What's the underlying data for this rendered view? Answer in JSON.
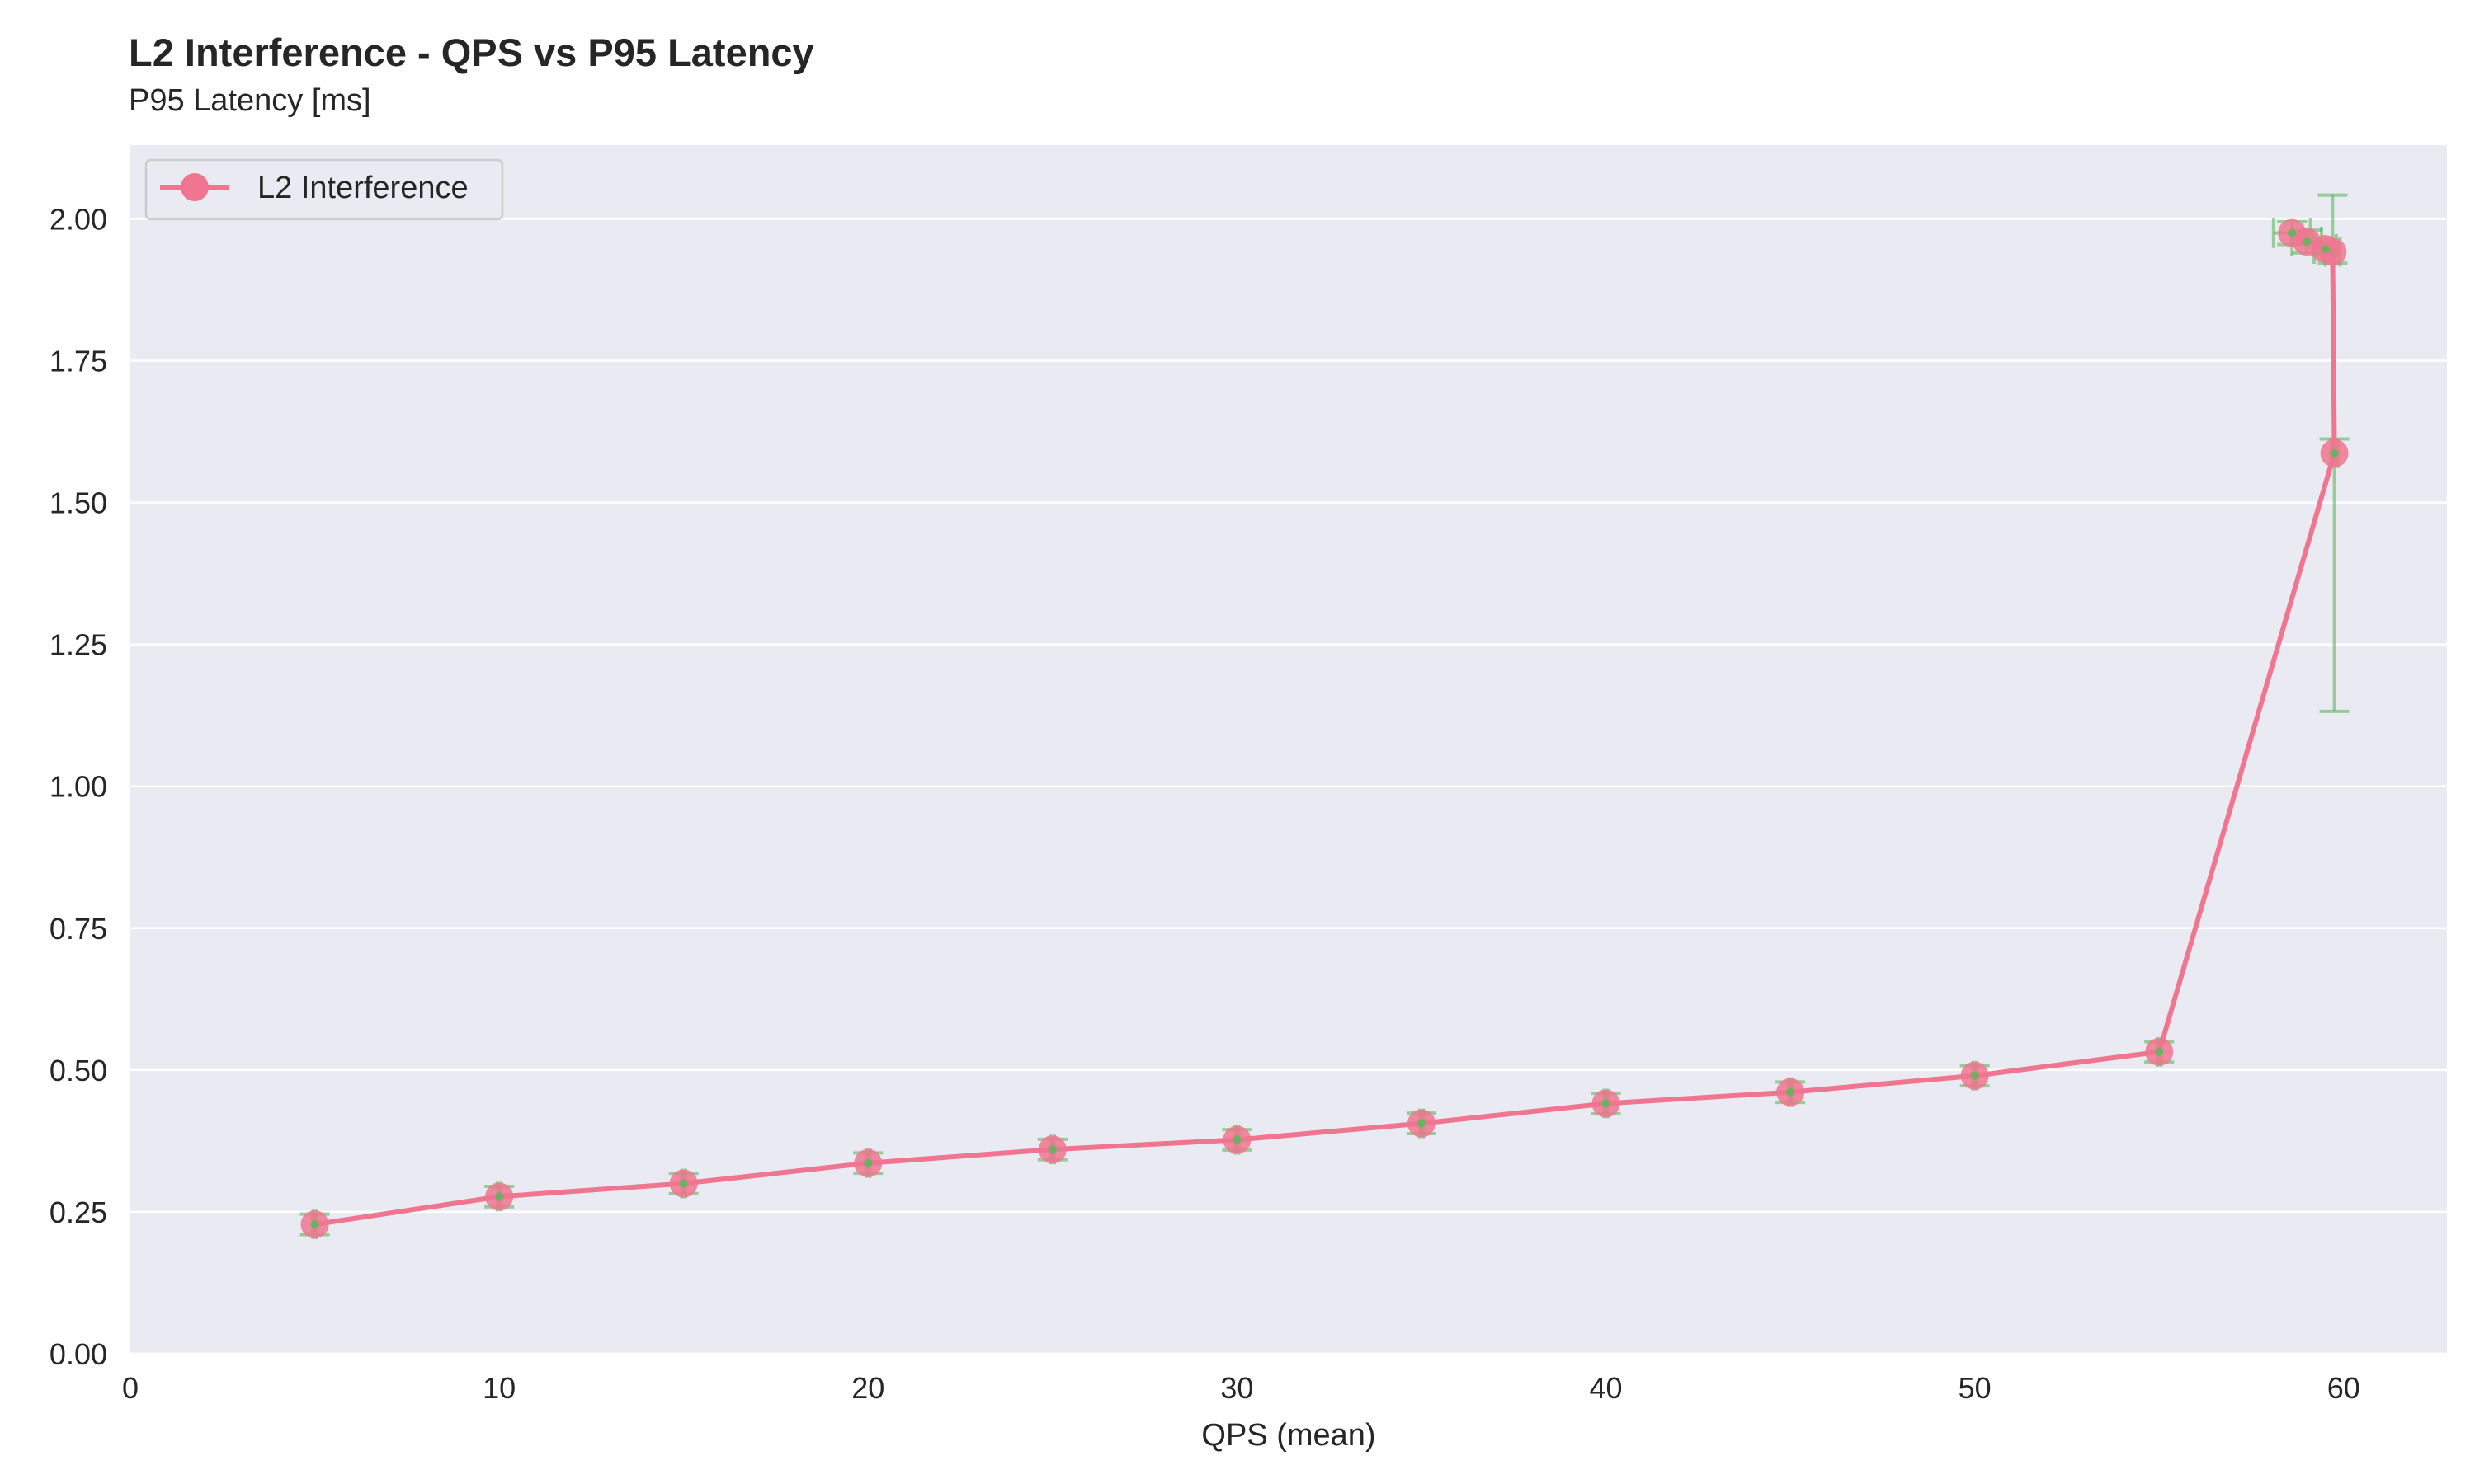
{
  "chart_data": {
    "type": "line",
    "title": "L2 Interference - QPS vs P95 Latency",
    "subtitle": "P95 Latency [ms]",
    "xlabel": "QPS (mean)",
    "ylabel": "",
    "xlim": [
      0,
      62.8
    ],
    "ylim": [
      0,
      2.13
    ],
    "xticks": [
      0,
      10,
      20,
      30,
      40,
      50,
      60
    ],
    "yticks": [
      0.0,
      0.25,
      0.5,
      0.75,
      1.0,
      1.25,
      1.5,
      1.75,
      2.0
    ],
    "xtick_labels": [
      "0",
      "10",
      "20",
      "30",
      "40",
      "50",
      "60"
    ],
    "ytick_labels": [
      "0.00",
      "0.25",
      "0.50",
      "0.75",
      "1.00",
      "1.25",
      "1.50",
      "1.75",
      "2.00"
    ],
    "grid": "y",
    "legend_position": "top-left",
    "colors": {
      "background": "#eaeaf2",
      "grid": "#ffffff",
      "line": "#f07590",
      "errorbar": "#5cb85c"
    },
    "series": [
      {
        "name": "L2 Interference",
        "points": [
          {
            "x": 5.0,
            "y": 0.228,
            "yerr": [
              0.018,
              0.018
            ],
            "xerr": [
              0.05,
              0.05
            ]
          },
          {
            "x": 10.0,
            "y": 0.277,
            "yerr": [
              0.018,
              0.018
            ],
            "xerr": [
              0.05,
              0.05
            ]
          },
          {
            "x": 15.0,
            "y": 0.3,
            "yerr": [
              0.018,
              0.018
            ],
            "xerr": [
              0.05,
              0.05
            ]
          },
          {
            "x": 20.0,
            "y": 0.336,
            "yerr": [
              0.018,
              0.018
            ],
            "xerr": [
              0.05,
              0.05
            ]
          },
          {
            "x": 25.0,
            "y": 0.36,
            "yerr": [
              0.018,
              0.018
            ],
            "xerr": [
              0.05,
              0.05
            ]
          },
          {
            "x": 30.0,
            "y": 0.377,
            "yerr": [
              0.018,
              0.018
            ],
            "xerr": [
              0.05,
              0.05
            ]
          },
          {
            "x": 35.0,
            "y": 0.406,
            "yerr": [
              0.018,
              0.018
            ],
            "xerr": [
              0.05,
              0.05
            ]
          },
          {
            "x": 40.0,
            "y": 0.441,
            "yerr": [
              0.018,
              0.018
            ],
            "xerr": [
              0.05,
              0.05
            ]
          },
          {
            "x": 45.0,
            "y": 0.461,
            "yerr": [
              0.018,
              0.018
            ],
            "xerr": [
              0.05,
              0.05
            ]
          },
          {
            "x": 50.0,
            "y": 0.49,
            "yerr": [
              0.018,
              0.018
            ],
            "xerr": [
              0.05,
              0.05
            ]
          },
          {
            "x": 55.0,
            "y": 0.532,
            "yerr": [
              0.018,
              0.018
            ],
            "xerr": [
              0.05,
              0.05
            ]
          },
          {
            "x": 59.75,
            "y": 1.587,
            "yerr": [
              0.455,
              0.025
            ],
            "xerr": [
              0.1,
              0.1
            ]
          },
          {
            "x": 59.7,
            "y": 1.942,
            "yerr": [
              0.02,
              0.1
            ],
            "xerr": [
              0.2,
              0.2
            ]
          },
          {
            "x": 59.5,
            "y": 1.947,
            "yerr": [
              0.01,
              0.01
            ],
            "xerr": [
              0.3,
              0.3
            ]
          },
          {
            "x": 59.0,
            "y": 1.96,
            "yerr": [
              0.02,
              0.02
            ],
            "xerr": [
              0.4,
              0.4
            ]
          },
          {
            "x": 58.6,
            "y": 1.975,
            "yerr": [
              0.02,
              0.02
            ],
            "xerr": [
              0.5,
              0.5
            ]
          }
        ]
      }
    ]
  }
}
